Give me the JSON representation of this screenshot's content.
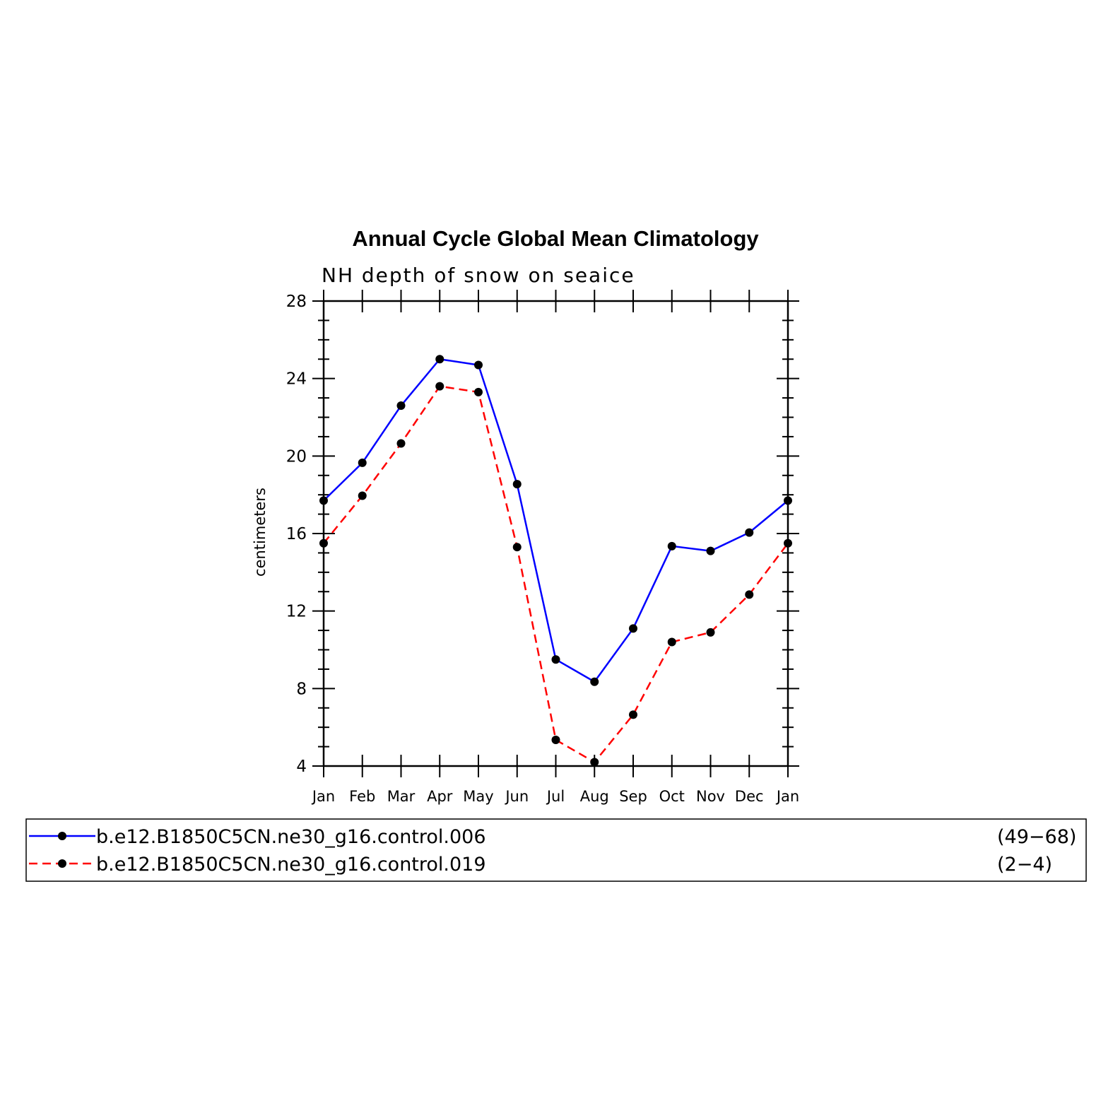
{
  "chart_data": {
    "type": "line",
    "title": "Annual Cycle Global Mean Climatology",
    "subtitle": "NH depth of snow on seaice",
    "xlabel": "",
    "ylabel": "centimeters",
    "categories": [
      "Jan",
      "Feb",
      "Mar",
      "Apr",
      "May",
      "Jun",
      "Jul",
      "Aug",
      "Sep",
      "Oct",
      "Nov",
      "Dec",
      "Jan"
    ],
    "ylim": [
      4,
      28
    ],
    "yticks": [
      "4",
      "8",
      "12",
      "16",
      "20",
      "24",
      "28"
    ],
    "series": [
      {
        "name": "b.e12.B1850C5CN.ne30_g16.control.006",
        "years": "(49−68)",
        "color": "#0000ff",
        "dash": "solid",
        "values": [
          17.7,
          19.65,
          22.6,
          25.0,
          24.7,
          18.55,
          9.5,
          8.35,
          11.1,
          15.35,
          15.1,
          16.05,
          17.7
        ]
      },
      {
        "name": "b.e12.B1850C5CN.ne30_g16.control.019",
        "years": "(2−4)",
        "color": "#ff0000",
        "dash": "dashed",
        "values": [
          15.5,
          17.95,
          20.65,
          23.6,
          23.3,
          15.3,
          5.35,
          4.2,
          6.65,
          10.4,
          10.9,
          12.85,
          15.5
        ]
      }
    ],
    "legend_position": "bottom"
  }
}
